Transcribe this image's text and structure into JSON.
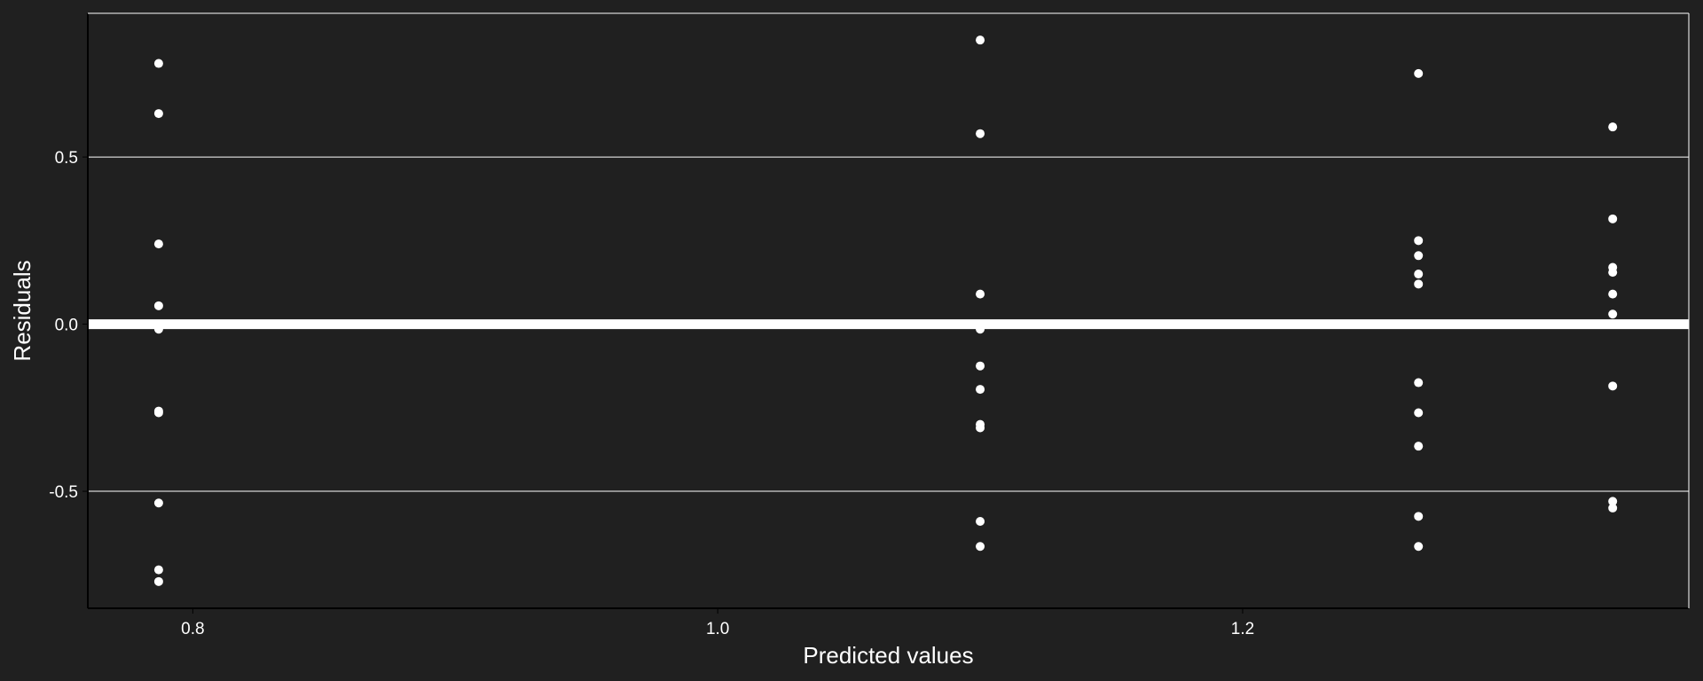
{
  "chart_data": {
    "type": "scatter",
    "title": "",
    "xlabel": "Predicted values",
    "ylabel": "Residuals",
    "xlim": [
      0.76,
      1.37
    ],
    "ylim": [
      -0.85,
      0.93
    ],
    "x_ticks": [
      0.8,
      1.0,
      1.2
    ],
    "x_tick_labels": [
      "0.8",
      "1.0",
      "1.2"
    ],
    "y_ticks": [
      -0.5,
      0.0,
      0.5
    ],
    "y_tick_labels": [
      "-0.5",
      "0.0",
      "0.5"
    ],
    "gridlines": "horizontal major",
    "reference_line": {
      "y": 0.0,
      "style": "thick white"
    },
    "colors": {
      "background": "#202020",
      "points": "#ffffff",
      "grid": "#ffffff",
      "frame": "#ffffff"
    },
    "series": [
      {
        "points": [
          [
            0.787,
            0.78
          ],
          [
            0.787,
            0.63
          ],
          [
            0.787,
            0.24
          ],
          [
            0.787,
            0.055
          ],
          [
            0.787,
            -0.005
          ],
          [
            0.787,
            -0.015
          ],
          [
            0.787,
            -0.26
          ],
          [
            0.787,
            -0.265
          ],
          [
            0.787,
            -0.535
          ],
          [
            0.787,
            -0.735
          ],
          [
            0.787,
            -0.77
          ],
          [
            1.1,
            0.85
          ],
          [
            1.1,
            0.57
          ],
          [
            1.1,
            0.09
          ],
          [
            1.1,
            -0.015
          ],
          [
            1.1,
            -0.125
          ],
          [
            1.1,
            -0.195
          ],
          [
            1.1,
            -0.3
          ],
          [
            1.1,
            -0.31
          ],
          [
            1.1,
            -0.59
          ],
          [
            1.1,
            -0.665
          ],
          [
            1.267,
            0.75
          ],
          [
            1.267,
            0.25
          ],
          [
            1.267,
            0.205
          ],
          [
            1.267,
            0.15
          ],
          [
            1.267,
            0.12
          ],
          [
            1.267,
            -0.175
          ],
          [
            1.267,
            -0.265
          ],
          [
            1.267,
            -0.365
          ],
          [
            1.267,
            -0.575
          ],
          [
            1.267,
            -0.665
          ],
          [
            1.341,
            0.59
          ],
          [
            1.341,
            0.315
          ],
          [
            1.341,
            0.17
          ],
          [
            1.341,
            0.155
          ],
          [
            1.341,
            0.09
          ],
          [
            1.341,
            0.03
          ],
          [
            1.341,
            -0.185
          ],
          [
            1.341,
            -0.53
          ],
          [
            1.341,
            -0.55
          ]
        ]
      }
    ]
  }
}
